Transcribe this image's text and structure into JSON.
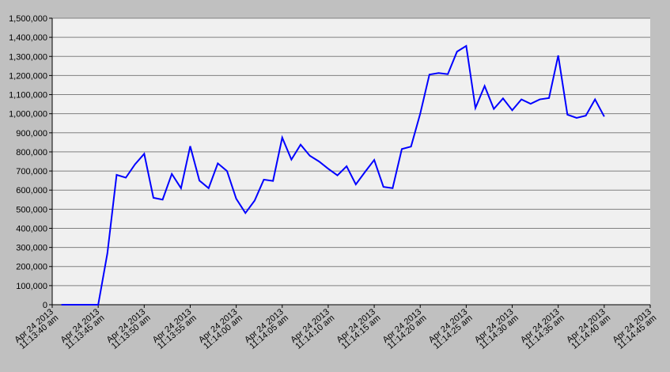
{
  "chart_data": {
    "type": "line",
    "x": [
      "2013-04-24T11:13:41",
      "2013-04-24T11:13:42",
      "2013-04-24T11:13:43",
      "2013-04-24T11:13:44",
      "2013-04-24T11:13:45",
      "2013-04-24T11:13:46",
      "2013-04-24T11:13:47",
      "2013-04-24T11:13:48",
      "2013-04-24T11:13:49",
      "2013-04-24T11:13:50",
      "2013-04-24T11:13:51",
      "2013-04-24T11:13:52",
      "2013-04-24T11:13:53",
      "2013-04-24T11:13:54",
      "2013-04-24T11:13:55",
      "2013-04-24T11:13:56",
      "2013-04-24T11:13:57",
      "2013-04-24T11:13:58",
      "2013-04-24T11:13:59",
      "2013-04-24T11:14:00",
      "2013-04-24T11:14:01",
      "2013-04-24T11:14:02",
      "2013-04-24T11:14:03",
      "2013-04-24T11:14:04",
      "2013-04-24T11:14:05",
      "2013-04-24T11:14:06",
      "2013-04-24T11:14:07",
      "2013-04-24T11:14:08",
      "2013-04-24T11:14:09",
      "2013-04-24T11:14:10",
      "2013-04-24T11:14:11",
      "2013-04-24T11:14:12",
      "2013-04-24T11:14:13",
      "2013-04-24T11:14:14",
      "2013-04-24T11:14:15",
      "2013-04-24T11:14:16",
      "2013-04-24T11:14:17",
      "2013-04-24T11:14:18",
      "2013-04-24T11:14:19",
      "2013-04-24T11:14:20",
      "2013-04-24T11:14:21",
      "2013-04-24T11:14:22",
      "2013-04-24T11:14:23",
      "2013-04-24T11:14:24",
      "2013-04-24T11:14:25",
      "2013-04-24T11:14:26",
      "2013-04-24T11:14:27",
      "2013-04-24T11:14:28",
      "2013-04-24T11:14:29",
      "2013-04-24T11:14:30",
      "2013-04-24T11:14:31",
      "2013-04-24T11:14:32",
      "2013-04-24T11:14:33",
      "2013-04-24T11:14:34",
      "2013-04-24T11:14:35",
      "2013-04-24T11:14:36",
      "2013-04-24T11:14:37",
      "2013-04-24T11:14:38",
      "2013-04-24T11:14:39",
      "2013-04-24T11:14:40"
    ],
    "series": [
      {
        "color": "#0000ff",
        "values": [
          0,
          0,
          0,
          0,
          0,
          270000,
          680000,
          665000,
          735000,
          790000,
          560000,
          550000,
          685000,
          610000,
          830000,
          650000,
          610000,
          740000,
          700000,
          555000,
          480000,
          545000,
          655000,
          648000,
          875000,
          760000,
          838000,
          780000,
          750000,
          712000,
          677000,
          725000,
          630000,
          695000,
          758000,
          617000,
          610000,
          815000,
          828000,
          1000000,
          1205000,
          1213000,
          1207000,
          1325000,
          1355000,
          1030000,
          1145000,
          1025000,
          1080000,
          1018000,
          1075000,
          1052000,
          1075000,
          1082000,
          1305000,
          995000,
          978000,
          990000,
          1075000,
          985000
        ]
      }
    ],
    "xlim": [
      "2013-04-24T11:13:40",
      "2013-04-24T11:14:45"
    ],
    "xticks": [
      {
        "value": "2013-04-24T11:13:40",
        "label": [
          "Apr 24 2013",
          "11:13:40 am"
        ]
      },
      {
        "value": "2013-04-24T11:13:45",
        "label": [
          "Apr 24 2013",
          "11:13:45 am"
        ]
      },
      {
        "value": "2013-04-24T11:13:50",
        "label": [
          "Apr 24 2013",
          "11:13:50 am"
        ]
      },
      {
        "value": "2013-04-24T11:13:55",
        "label": [
          "Apr 24 2013",
          "11:13:55 am"
        ]
      },
      {
        "value": "2013-04-24T11:14:00",
        "label": [
          "Apr 24 2013",
          "11:14:00 am"
        ]
      },
      {
        "value": "2013-04-24T11:14:05",
        "label": [
          "Apr 24 2013",
          "11:14:05 am"
        ]
      },
      {
        "value": "2013-04-24T11:14:10",
        "label": [
          "Apr 24 2013",
          "11:14:10 am"
        ]
      },
      {
        "value": "2013-04-24T11:14:15",
        "label": [
          "Apr 24 2013",
          "11:14:15 am"
        ]
      },
      {
        "value": "2013-04-24T11:14:20",
        "label": [
          "Apr 24 2013",
          "11:14:20 am"
        ]
      },
      {
        "value": "2013-04-24T11:14:25",
        "label": [
          "Apr 24 2013",
          "11:14:25 am"
        ]
      },
      {
        "value": "2013-04-24T11:14:30",
        "label": [
          "Apr 24 2013",
          "11:14:30 am"
        ]
      },
      {
        "value": "2013-04-24T11:14:35",
        "label": [
          "Apr 24 2013",
          "11:14:35 am"
        ]
      },
      {
        "value": "2013-04-24T11:14:40",
        "label": [
          "Apr 24 2013",
          "11:14:40 am"
        ]
      },
      {
        "value": "2013-04-24T11:14:45",
        "label": [
          "Apr 24 2013",
          "11:14:45 am"
        ]
      }
    ],
    "ylim": [
      0,
      1500000
    ],
    "yticks": [
      0,
      {
        "value": 100000,
        "label": "100,000"
      },
      {
        "value": 200000,
        "label": "200,000"
      },
      {
        "value": 300000,
        "label": "300,000"
      },
      {
        "value": 400000,
        "label": "400,000"
      },
      {
        "value": 500000,
        "label": "500,000"
      },
      {
        "value": 600000,
        "label": "600,000"
      },
      {
        "value": 700000,
        "label": "700,000"
      },
      {
        "value": 800000,
        "label": "800,000"
      },
      {
        "value": 900000,
        "label": "900,000"
      },
      {
        "value": 1000000,
        "label": "1,000,000"
      },
      {
        "value": 1100000,
        "label": "1,100,000"
      },
      {
        "value": 1200000,
        "label": "1,200,000"
      },
      {
        "value": 1300000,
        "label": "1,300,000"
      },
      {
        "value": 1400000,
        "label": "1,400,000"
      },
      {
        "value": 1500000,
        "label": "1,500,000"
      }
    ],
    "grid": true
  }
}
